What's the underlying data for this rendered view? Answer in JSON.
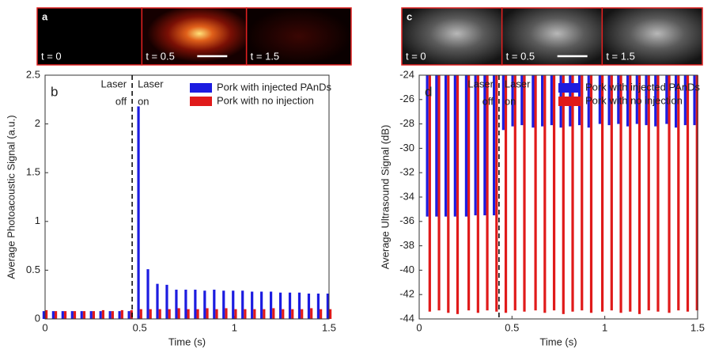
{
  "images": [
    {
      "label": "a",
      "frames": [
        "t = 0",
        "t = 0.5",
        "t = 1.5"
      ],
      "style": "photoacoustic"
    },
    {
      "label": "c",
      "frames": [
        "t = 0",
        "t = 0.5",
        "t = 1.5"
      ],
      "style": "ultrasound"
    }
  ],
  "chart_data": [
    {
      "type": "bar",
      "panel": "b",
      "xlabel": "Time (s)",
      "ylabel": "Average Photoacoustic Signal (a.u.)",
      "annotation_left": [
        "Laser",
        "off"
      ],
      "annotation_right": [
        "Laser",
        "on"
      ],
      "laser_x": 0.46,
      "x": [
        0,
        0.05,
        0.1,
        0.15,
        0.2,
        0.25,
        0.3,
        0.35,
        0.4,
        0.45,
        0.5,
        0.55,
        0.6,
        0.65,
        0.7,
        0.75,
        0.8,
        0.85,
        0.9,
        0.95,
        1.0,
        1.05,
        1.1,
        1.15,
        1.2,
        1.25,
        1.3,
        1.35,
        1.4,
        1.45,
        1.5
      ],
      "series": [
        {
          "name": "Pork with injected PAnDs",
          "color": "#1c1ce0",
          "values": [
            0.08,
            0.08,
            0.08,
            0.08,
            0.08,
            0.08,
            0.08,
            0.08,
            0.08,
            0.08,
            2.18,
            0.51,
            0.36,
            0.35,
            0.3,
            0.3,
            0.3,
            0.29,
            0.3,
            0.29,
            0.29,
            0.29,
            0.28,
            0.28,
            0.28,
            0.27,
            0.27,
            0.27,
            0.26,
            0.26,
            0.26
          ]
        },
        {
          "name": "Pork with no injection",
          "color": "#e01a1a",
          "values": [
            0.09,
            0.08,
            0.08,
            0.08,
            0.08,
            0.08,
            0.09,
            0.08,
            0.09,
            0.09,
            0.1,
            0.1,
            0.1,
            0.1,
            0.11,
            0.1,
            0.1,
            0.11,
            0.1,
            0.11,
            0.1,
            0.1,
            0.1,
            0.1,
            0.11,
            0.1,
            0.1,
            0.1,
            0.11,
            0.1,
            0.1
          ]
        }
      ],
      "xlim": [
        0,
        1.5
      ],
      "ylim": [
        0,
        2.5
      ],
      "xticks": [
        0,
        0.5,
        1,
        1.5
      ],
      "yticks": [
        0,
        0.5,
        1,
        1.5,
        2,
        2.5
      ],
      "legend": "upper right"
    },
    {
      "type": "bar",
      "panel": "d",
      "xlabel": "Time (s)",
      "ylabel": "Average Ultrasound Signal (dB)",
      "annotation_left": [
        "Laser",
        "off"
      ],
      "annotation_right": [
        "Laser",
        "on"
      ],
      "laser_x": 0.43,
      "x": [
        0.05,
        0.1,
        0.15,
        0.2,
        0.26,
        0.31,
        0.36,
        0.41,
        0.46,
        0.51,
        0.56,
        0.62,
        0.67,
        0.72,
        0.77,
        0.82,
        0.87,
        0.92,
        0.98,
        1.03,
        1.08,
        1.13,
        1.18,
        1.23,
        1.28,
        1.34,
        1.39,
        1.44,
        1.49
      ],
      "series": [
        {
          "name": "Pork with injected PAnDs",
          "color": "#1c1ce0",
          "values": [
            -35.6,
            -35.6,
            -35.6,
            -35.6,
            -35.6,
            -35.5,
            -35.5,
            -35.5,
            -28.5,
            -28.2,
            -28.1,
            -28.3,
            -28.2,
            -28.1,
            -28.3,
            -28.2,
            -28.1,
            -28.3,
            -28.0,
            -28.1,
            -28.0,
            -28.2,
            -28.0,
            -28.1,
            -28.2,
            -28.0,
            -28.3,
            -28.1,
            -28.1
          ]
        },
        {
          "name": "Pork with no injection",
          "color": "#e01a1a",
          "values": [
            -43.4,
            -43.3,
            -43.5,
            -43.6,
            -43.3,
            -43.5,
            -43.3,
            -43.4,
            -43.5,
            -43.3,
            -43.4,
            -43.3,
            -43.5,
            -43.3,
            -43.6,
            -43.4,
            -43.3,
            -43.5,
            -43.4,
            -43.3,
            -43.5,
            -43.4,
            -43.6,
            -43.3,
            -43.4,
            -43.5,
            -43.3,
            -43.4,
            -43.3
          ]
        }
      ],
      "xlim": [
        0,
        1.5
      ],
      "ylim": [
        -44,
        -24
      ],
      "xticks": [
        0,
        0.5,
        1,
        1.5
      ],
      "yticks": [
        -44,
        -42,
        -40,
        -38,
        -36,
        -34,
        -32,
        -30,
        -28,
        -26,
        -24
      ],
      "legend": "upper right"
    }
  ]
}
